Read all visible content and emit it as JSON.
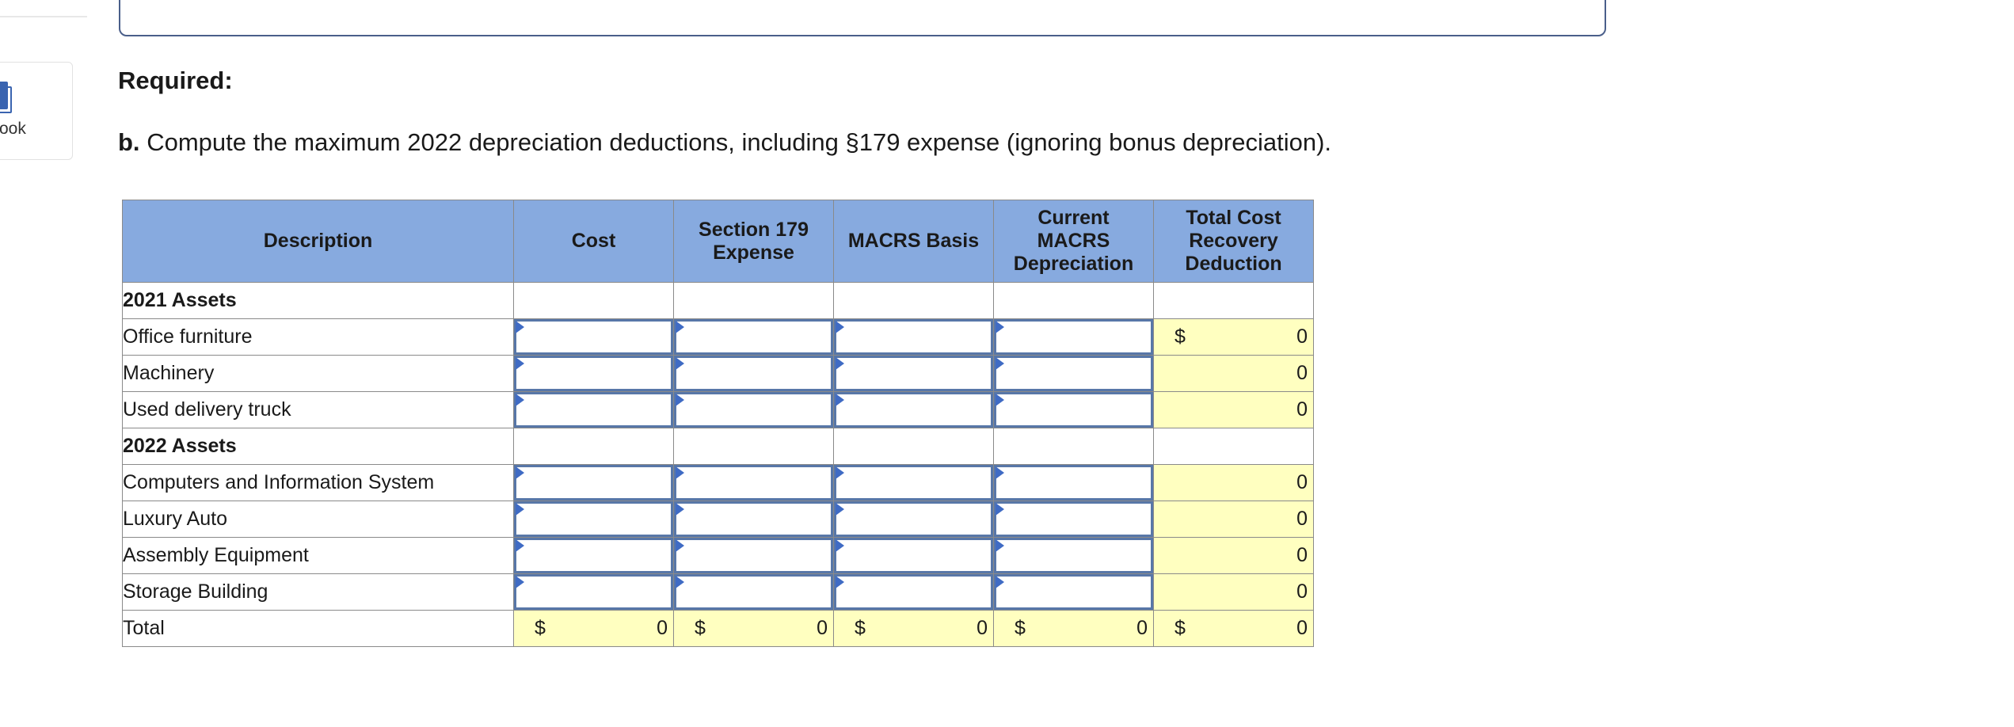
{
  "sidebar": {
    "ebook_label": "Book"
  },
  "required_label": "Required:",
  "question": {
    "part": "b.",
    "text": "Compute the maximum 2022 depreciation deductions, including §179 expense (ignoring bonus depreciation)."
  },
  "table": {
    "headers": {
      "description": "Description",
      "cost": "Cost",
      "section179": "Section 179 Expense",
      "macrs_basis": "MACRS Basis",
      "current_macrs": "Current MACRS Depreciation",
      "total_cost_recovery": "Total Cost Recovery Deduction"
    },
    "sections": {
      "assets_2021": "2021 Assets",
      "assets_2022": "2022 Assets"
    },
    "rows": [
      {
        "label": "Office furniture",
        "total": "0",
        "currency": "$"
      },
      {
        "label": "Machinery",
        "total": "0"
      },
      {
        "label": "Used delivery truck",
        "total": "0"
      },
      {
        "label": "Computers and Information System",
        "total": "0"
      },
      {
        "label": "Luxury Auto",
        "total": "0"
      },
      {
        "label": "Assembly Equipment",
        "total": "0"
      },
      {
        "label": "Storage Building",
        "total": "0"
      }
    ],
    "total_row": {
      "label": "Total",
      "currency": "$",
      "cost": "0",
      "section179": "0",
      "macrs_basis": "0",
      "current_macrs": "0",
      "total_cost_recovery": "0"
    }
  },
  "colors": {
    "header_bg": "#87aadf",
    "computed_cell_bg": "#ffffc0",
    "input_border": "#5877a8",
    "input_flag": "#3f6bc4"
  }
}
